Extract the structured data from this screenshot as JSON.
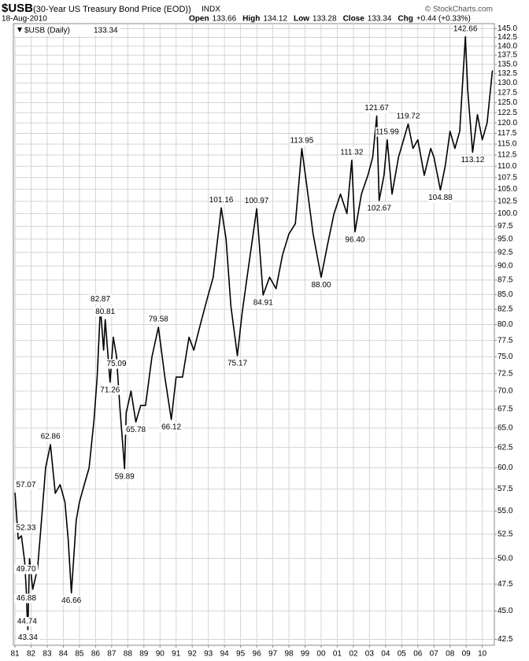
{
  "chart_data": {
    "type": "line",
    "title": "$USB",
    "subtitle": "(30-Year US Treasury Bond Price (EOD))",
    "exchange": "INDX",
    "date": "18-Aug-2010",
    "credit": "© StockCharts.com",
    "quote": [
      {
        "label": "Open",
        "value": "133.66"
      },
      {
        "label": "High",
        "value": "134.12"
      },
      {
        "label": "Low",
        "value": "133.28"
      },
      {
        "label": "Close",
        "value": "133.34"
      },
      {
        "label": "Chg",
        "value": "+0.44 (+0.33%)"
      }
    ],
    "log_y": true,
    "grid": true,
    "legend": "top-left",
    "xlim": [
      1980.9,
      2010.75
    ],
    "ylim": [
      42,
      146.5
    ],
    "xticks": [
      {
        "value": 1981,
        "label": "81"
      },
      {
        "value": 1982,
        "label": "82"
      },
      {
        "value": 1983,
        "label": "83"
      },
      {
        "value": 1984,
        "label": "84"
      },
      {
        "value": 1985,
        "label": "85"
      },
      {
        "value": 1986,
        "label": "86"
      },
      {
        "value": 1987,
        "label": "87"
      },
      {
        "value": 1988,
        "label": "88"
      },
      {
        "value": 1989,
        "label": "89"
      },
      {
        "value": 1990,
        "label": "90"
      },
      {
        "value": 1991,
        "label": "91"
      },
      {
        "value": 1992,
        "label": "92"
      },
      {
        "value": 1993,
        "label": "93"
      },
      {
        "value": 1994,
        "label": "94"
      },
      {
        "value": 1995,
        "label": "95"
      },
      {
        "value": 1996,
        "label": "96"
      },
      {
        "value": 1997,
        "label": "97"
      },
      {
        "value": 1998,
        "label": "98"
      },
      {
        "value": 1999,
        "label": "99"
      },
      {
        "value": 2000,
        "label": "00"
      },
      {
        "value": 2001,
        "label": "01"
      },
      {
        "value": 2002,
        "label": "02"
      },
      {
        "value": 2003,
        "label": "03"
      },
      {
        "value": 2004,
        "label": "04"
      },
      {
        "value": 2005,
        "label": "05"
      },
      {
        "value": 2006,
        "label": "06"
      },
      {
        "value": 2007,
        "label": "07"
      },
      {
        "value": 2008,
        "label": "08"
      },
      {
        "value": 2009,
        "label": "09"
      },
      {
        "value": 2010,
        "label": "10"
      }
    ],
    "yticks": [
      42.5,
      {
        "value": 45,
        "label": "45.0"
      },
      47.5,
      {
        "value": 50,
        "label": "50.0"
      },
      52.5,
      {
        "value": 55,
        "label": "55.0"
      },
      57.5,
      {
        "value": 60,
        "label": "60.0"
      },
      62.5,
      {
        "value": 65,
        "label": "65.0"
      },
      67.5,
      {
        "value": 70,
        "label": "70.0"
      },
      72.5,
      {
        "value": 75,
        "label": "75.0"
      },
      77.5,
      {
        "value": 80,
        "label": "80.0"
      },
      82.5,
      {
        "value": 85,
        "label": "85.0"
      },
      87.5,
      {
        "value": 90,
        "label": "90.0"
      },
      92.5,
      {
        "value": 95,
        "label": "95.0"
      },
      97.5,
      {
        "value": 100,
        "label": "100.0"
      },
      102.5,
      {
        "value": 105,
        "label": "105.0"
      },
      107.5,
      {
        "value": 110,
        "label": "110.0"
      },
      112.5,
      {
        "value": 115,
        "label": "115.0"
      },
      117.5,
      {
        "value": 120,
        "label": "120.0"
      },
      122.5,
      {
        "value": 125,
        "label": "125.0"
      },
      127.5,
      {
        "value": 130,
        "label": "130.0"
      },
      132.5,
      {
        "value": 135,
        "label": "135.0"
      },
      137.5,
      {
        "value": 140,
        "label": "140.0"
      },
      142.5,
      {
        "value": 145,
        "label": "145.0"
      }
    ],
    "x": [
      1981.0,
      1981.2,
      1981.4,
      1981.6,
      1981.7,
      1981.75,
      1981.8,
      1981.9,
      1982.1,
      1982.4,
      1982.6,
      1982.9,
      1983.2,
      1983.5,
      1983.8,
      1984.1,
      1984.3,
      1984.5,
      1984.8,
      1985.0,
      1985.3,
      1985.6,
      1985.9,
      1986.1,
      1986.3,
      1986.5,
      1986.6,
      1986.9,
      1987.1,
      1987.3,
      1987.5,
      1987.8,
      1987.9,
      1988.2,
      1988.5,
      1988.8,
      1989.1,
      1989.5,
      1989.9,
      1990.3,
      1990.7,
      1991.0,
      1991.4,
      1991.8,
      1992.1,
      1992.5,
      1992.9,
      1993.3,
      1993.8,
      1994.1,
      1994.4,
      1994.8,
      1995.1,
      1995.5,
      1996.0,
      1996.4,
      1996.8,
      1997.2,
      1997.6,
      1998.0,
      1998.4,
      1998.8,
      1999.1,
      1999.5,
      2000.0,
      2000.4,
      2000.8,
      2001.2,
      2001.6,
      2001.9,
      2002.1,
      2002.5,
      2002.9,
      2003.2,
      2003.45,
      2003.6,
      2003.9,
      2004.1,
      2004.4,
      2004.8,
      2005.4,
      2005.7,
      2006.0,
      2006.4,
      2006.8,
      2007.0,
      2007.4,
      2007.7,
      2008.0,
      2008.3,
      2008.6,
      2008.95,
      2009.1,
      2009.4,
      2009.7,
      2010.0,
      2010.3,
      2010.63
    ],
    "series": [
      {
        "name": "$USB (Daily)",
        "color": "#000000",
        "values": [
          57.07,
          52,
          52.33,
          49.7,
          46.88,
          44.74,
          43.34,
          50,
          47,
          49,
          53,
          60,
          62.86,
          57,
          58,
          56,
          52,
          46.66,
          54,
          56,
          58,
          60,
          66,
          72,
          82.87,
          76,
          80.81,
          71.26,
          78,
          75.09,
          68,
          59.89,
          67,
          70,
          65.78,
          68,
          68,
          75,
          79.58,
          72,
          66.12,
          72,
          72,
          78,
          76,
          80,
          84,
          88,
          101.16,
          95,
          83,
          75.17,
          82,
          90,
          100.97,
          84.91,
          88,
          86,
          92,
          96,
          98,
          113.95,
          106,
          96,
          88,
          94,
          100,
          104,
          100,
          111.32,
          96.4,
          104,
          108,
          112,
          121.67,
          102.67,
          108,
          115.99,
          104,
          112,
          119.72,
          114,
          116,
          108,
          114,
          112,
          104.88,
          110,
          118,
          114,
          118,
          142.66,
          128,
          113.12,
          122,
          116,
          120,
          133.34
        ],
        "value_labels": [
          "57.07",
          null,
          "52.33",
          "49.70",
          "46.88",
          "44.74",
          "43.34",
          null,
          null,
          null,
          null,
          null,
          "62.86",
          null,
          null,
          null,
          null,
          "46.66",
          null,
          null,
          null,
          null,
          null,
          null,
          "82.87",
          null,
          "80.81",
          "71.26",
          null,
          "75.09",
          null,
          "59.89",
          null,
          null,
          "65.78",
          null,
          null,
          null,
          "79.58",
          null,
          "66.12",
          null,
          null,
          null,
          null,
          null,
          null,
          null,
          "101.16",
          null,
          null,
          "75.17",
          null,
          null,
          "100.97",
          "84.91",
          null,
          null,
          null,
          null,
          null,
          "113.95",
          null,
          null,
          "88.00",
          null,
          null,
          null,
          null,
          "111.32",
          "96.40",
          null,
          null,
          null,
          "121.67",
          "102.67",
          null,
          "115.99",
          null,
          null,
          "119.72",
          null,
          null,
          null,
          null,
          null,
          "104.88",
          null,
          null,
          null,
          null,
          "142.66",
          null,
          "113.12",
          null,
          null,
          null,
          null
        ]
      }
    ]
  }
}
